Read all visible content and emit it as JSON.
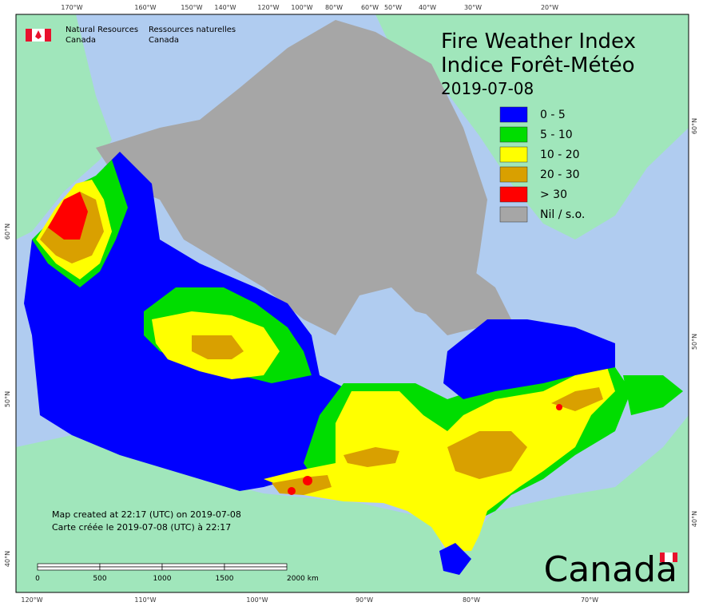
{
  "header": {
    "agency_en": [
      "Natural Resources",
      "Canada"
    ],
    "agency_fr": [
      "Ressources naturelles",
      "Canada"
    ],
    "wordmark": "Canada"
  },
  "map": {
    "title": [
      "Fire Weather Index",
      "Indice Forêt-Météo"
    ],
    "date": "2019-07-08",
    "legend": [
      {
        "label": "0 - 5",
        "color": "#0000ff"
      },
      {
        "label": "5 - 10",
        "color": "#00dd00"
      },
      {
        "label": "10 - 20",
        "color": "#ffff00"
      },
      {
        "label": "20 - 30",
        "color": "#d9a000"
      },
      {
        "label": "> 30",
        "color": "#ff0000"
      },
      {
        "label": "Nil / s.o.",
        "color": "#a6a6a6"
      }
    ],
    "notes": [
      "Map created at 22:17 (UTC) on 2019-07-08",
      "Carte créée le 2019-07-08 (UTC) à 22:17"
    ],
    "scale_labels": [
      "0",
      "500",
      "1000",
      "1500",
      "2000 km"
    ],
    "top_labels": [
      "170°W",
      "160°W",
      "150°W",
      "140°W",
      "120°W",
      "100°W",
      "80°W",
      "60°W",
      "50°W",
      "40°W",
      "30°W",
      "20°W"
    ],
    "bottom_labels": [
      "120°W",
      "110°W",
      "100°W",
      "90°W",
      "80°W",
      "70°W"
    ],
    "left_labels": [
      "60°N",
      "50°N",
      "40°N"
    ],
    "right_labels": [
      "60°N",
      "50°N",
      "40°N"
    ]
  }
}
